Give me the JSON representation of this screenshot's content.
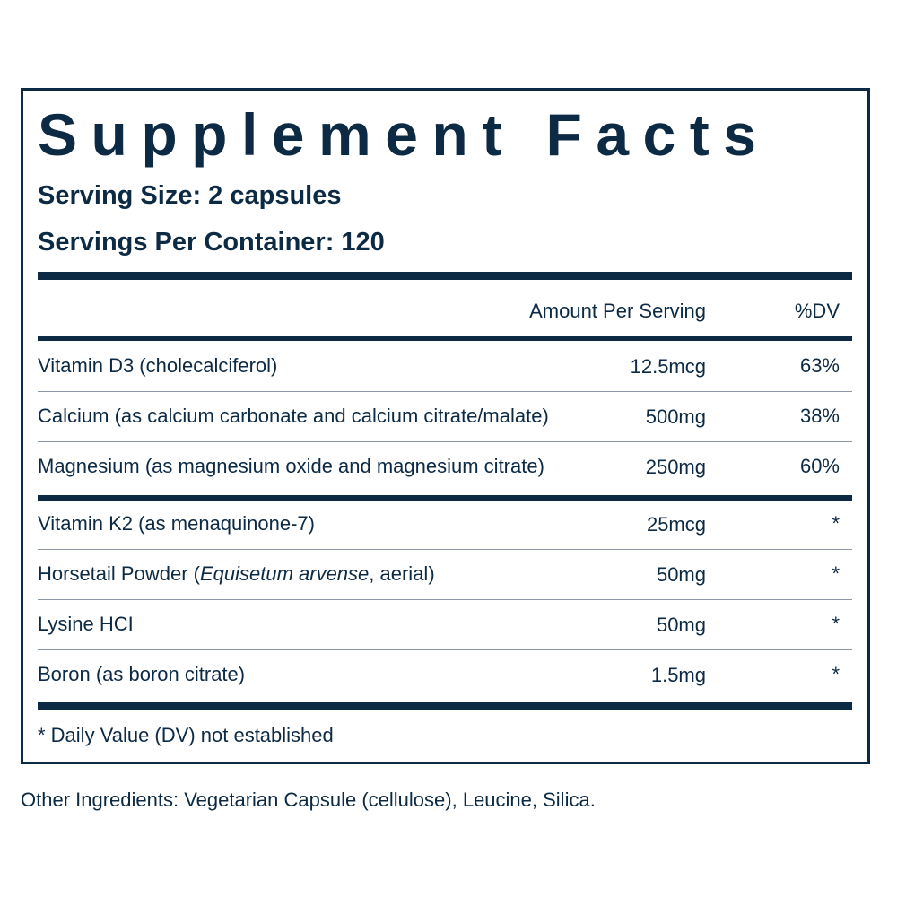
{
  "label": {
    "title": "Supplement Facts",
    "serving_size": "Serving Size: 2 capsules",
    "servings_per_container": "Servings Per Container: 120",
    "header": {
      "amount": "Amount Per Serving",
      "dv": "%DV"
    },
    "groups": [
      [
        {
          "name": "Vitamin D3 (cholecalciferol)",
          "amount": "12.5mcg",
          "dv": "63%"
        },
        {
          "name": "Calcium (as calcium carbonate and calcium citrate/malate)",
          "amount": "500mg",
          "dv": "38%"
        },
        {
          "name": "Magnesium (as magnesium oxide and magnesium citrate)",
          "amount": "250mg",
          "dv": "60%"
        }
      ],
      [
        {
          "name": "Vitamin K2 (as menaquinone-7)",
          "amount": "25mcg",
          "dv": "*"
        },
        {
          "name": "Horsetail Powder (",
          "name_italic": "Equisetum arvense",
          "name_end": ", aerial)",
          "amount": "50mg",
          "dv": "*"
        },
        {
          "name": "Lysine HCI",
          "amount": "50mg",
          "dv": "*"
        },
        {
          "name": "Boron (as boron citrate)",
          "amount": "1.5mg",
          "dv": "*"
        }
      ]
    ],
    "footnote": "* Daily Value (DV) not established"
  },
  "other_ingredients": "Other Ingredients: Vegetarian Capsule (cellulose), Leucine, Silica."
}
